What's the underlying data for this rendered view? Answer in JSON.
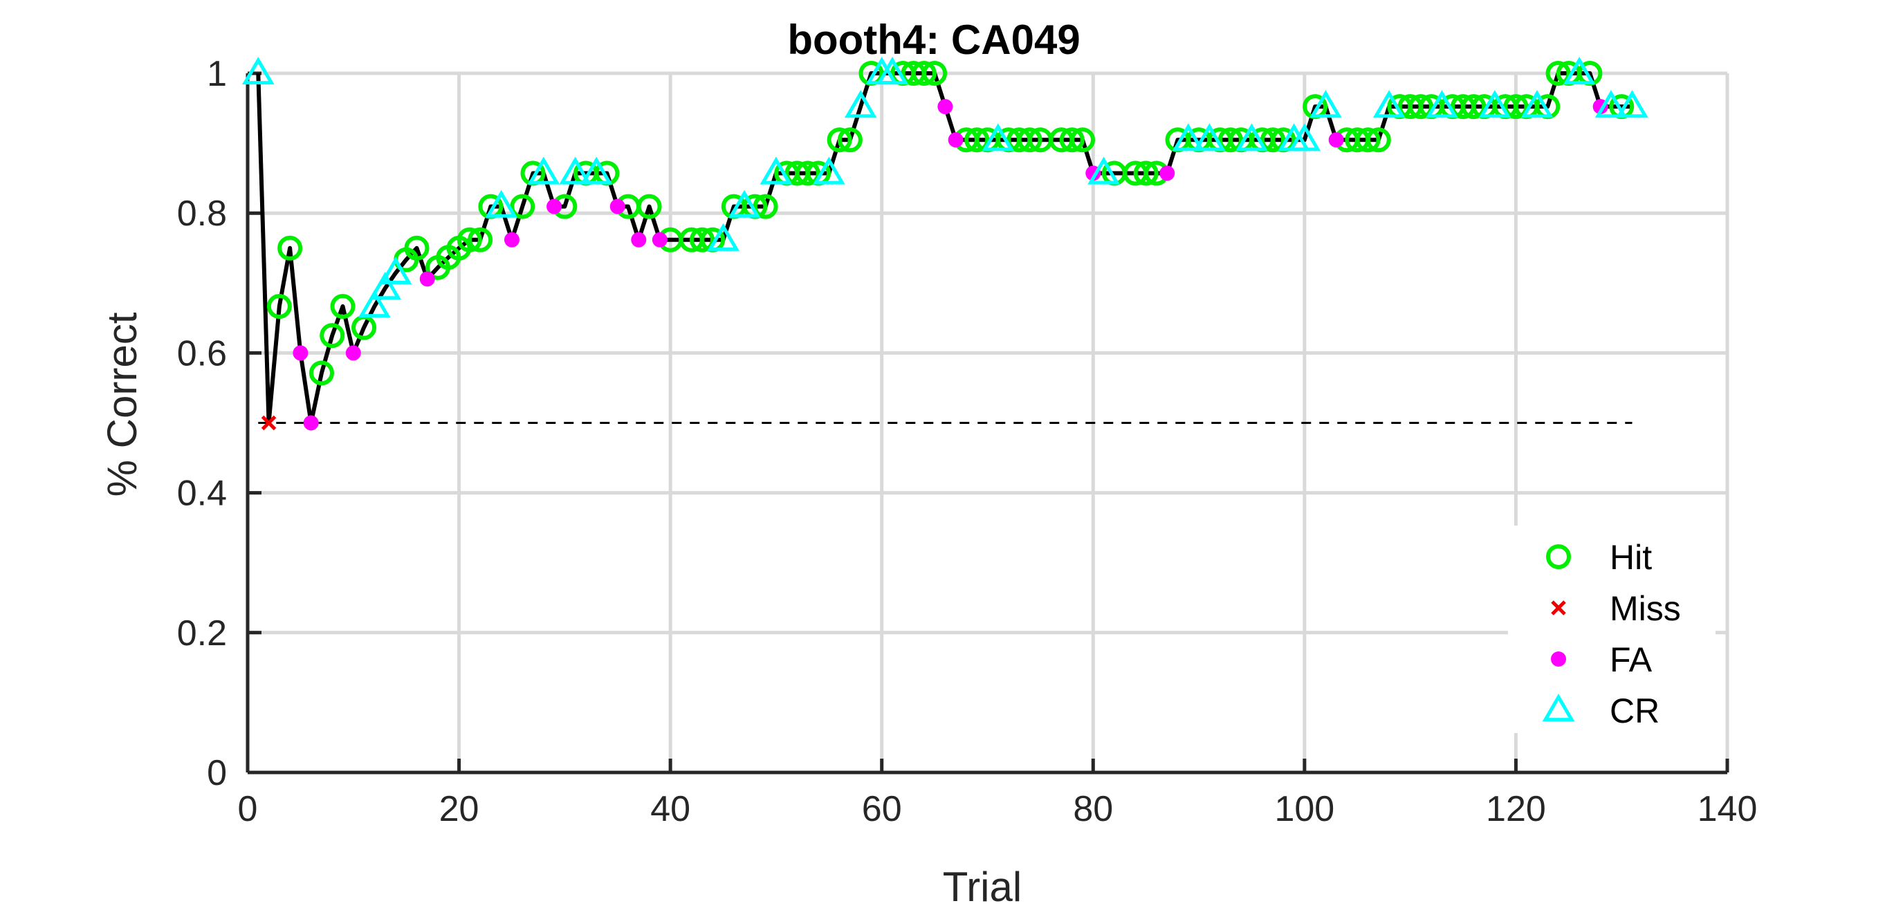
{
  "chart_data": {
    "type": "line",
    "title": "booth4: CA049",
    "xlabel": "Trial",
    "ylabel": "% Correct",
    "xlim": [
      0,
      140
    ],
    "ylim": [
      0,
      1
    ],
    "xticks": [
      0,
      20,
      40,
      60,
      80,
      100,
      120,
      140
    ],
    "yticks": [
      0,
      0.2,
      0.4,
      0.6,
      0.8,
      1
    ],
    "x_tick_labels": [
      "0",
      "20",
      "40",
      "60",
      "80",
      "100",
      "120",
      "140"
    ],
    "y_tick_labels": [
      "0",
      "0.2",
      "0.4",
      "0.6",
      "0.8",
      "1"
    ],
    "grid": true,
    "chance_line": 0.5,
    "legend_position": "bottom-right",
    "colors": {
      "line": "#000000",
      "hit": "#00ee00",
      "miss": "#ee0000",
      "fa": "#ff00ff",
      "cr": "#00ffff",
      "grid": "#d9d9d9",
      "axis": "#262626"
    },
    "series": [
      {
        "name": "Hit",
        "marker": "circle-open",
        "trials": [
          3,
          4,
          7,
          8,
          9,
          11,
          15,
          16,
          18,
          19,
          20,
          21,
          22,
          23,
          26,
          27,
          30,
          32,
          34,
          36,
          38,
          40,
          42,
          43,
          44,
          46,
          48,
          49,
          51,
          52,
          53,
          54,
          56,
          57,
          59,
          62,
          63,
          64,
          65,
          68,
          69,
          70,
          72,
          73,
          74,
          75,
          77,
          78,
          79,
          82,
          84,
          85,
          86,
          88,
          90,
          92,
          93,
          94,
          96,
          97,
          98,
          101,
          104,
          105,
          106,
          107,
          109,
          110,
          111,
          112,
          114,
          115,
          116,
          117,
          119,
          120,
          121,
          123,
          124,
          125,
          127,
          130
        ]
      },
      {
        "name": "Miss",
        "marker": "x",
        "trials": [
          2
        ]
      },
      {
        "name": "FA",
        "marker": "dot",
        "trials": [
          5,
          6,
          10,
          17,
          25,
          29,
          35,
          37,
          39,
          66,
          67,
          80,
          87,
          103,
          128
        ]
      },
      {
        "name": "CR",
        "marker": "triangle-open",
        "trials": [
          1,
          12,
          13,
          14,
          24,
          28,
          31,
          33,
          45,
          47,
          50,
          55,
          58,
          60,
          61,
          71,
          81,
          89,
          91,
          95,
          99,
          100,
          102,
          108,
          113,
          118,
          122,
          126,
          129,
          131
        ]
      }
    ],
    "performance": [
      1,
      0.5,
      0.6667,
      0.75,
      0.6,
      0.5,
      0.5714,
      0.625,
      0.6667,
      0.6,
      0.6364,
      0.6667,
      0.6923,
      0.7143,
      0.7333,
      0.75,
      0.7059,
      0.7222,
      0.7368,
      0.75,
      0.7619,
      0.7619,
      0.8095,
      0.8095,
      0.7619,
      0.8095,
      0.8571,
      0.8571,
      0.8095,
      0.8095,
      0.8571,
      0.8571,
      0.8571,
      0.8571,
      0.8095,
      0.8095,
      0.7619,
      0.8095,
      0.7619,
      0.7619,
      0.7619,
      0.7619,
      0.7619,
      0.7619,
      0.7619,
      0.8095,
      0.8095,
      0.8095,
      0.8095,
      0.8571,
      0.8571,
      0.8571,
      0.8571,
      0.8571,
      0.8571,
      0.9048,
      0.9048,
      0.9524,
      1,
      1,
      1,
      1,
      1,
      1,
      1,
      0.9524,
      0.9048,
      0.9048,
      0.9048,
      0.9048,
      0.9048,
      0.9048,
      0.9048,
      0.9048,
      0.9048,
      0.9048,
      0.9048,
      0.9048,
      0.9048,
      0.8571,
      0.8571,
      0.8571,
      0.8571,
      0.8571,
      0.8571,
      0.8571,
      0.8571,
      0.9048,
      0.9048,
      0.9048,
      0.9048,
      0.9048,
      0.9048,
      0.9048,
      0.9048,
      0.9048,
      0.9048,
      0.9048,
      0.9048,
      0.9048,
      0.9524,
      0.9524,
      0.9048,
      0.9048,
      0.9048,
      0.9048,
      0.9048,
      0.9524,
      0.9524,
      0.9524,
      0.9524,
      0.9524,
      0.9524,
      0.9524,
      0.9524,
      0.9524,
      0.9524,
      0.9524,
      0.9524,
      0.9524,
      0.9524,
      0.9524,
      0.9524,
      1,
      1,
      1,
      1,
      0.9524,
      0.9524,
      0.9524,
      0.9524
    ]
  }
}
